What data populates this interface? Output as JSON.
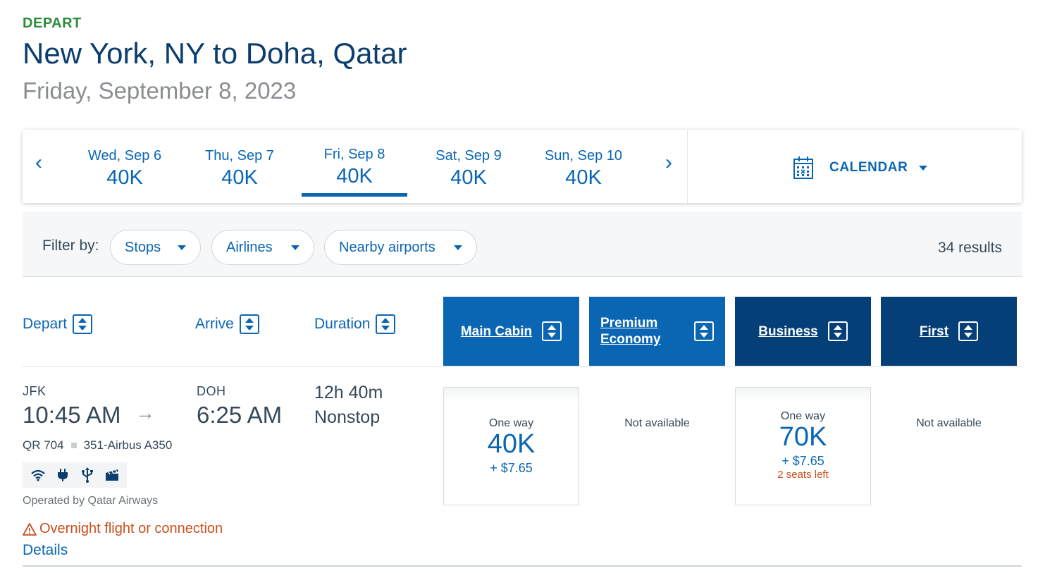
{
  "header": {
    "direction": "DEPART",
    "route": "New York, NY to Doha, Qatar",
    "date": "Friday, September 8, 2023"
  },
  "date_bar": {
    "prev_icon": "‹",
    "next_icon": "›",
    "dates": [
      {
        "day": "Wed, Sep 6",
        "price": "40K"
      },
      {
        "day": "Thu, Sep 7",
        "price": "40K"
      },
      {
        "day": "Fri, Sep 8",
        "price": "40K"
      },
      {
        "day": "Sat, Sep 9",
        "price": "40K"
      },
      {
        "day": "Sun, Sep 10",
        "price": "40K"
      }
    ],
    "selected_index": 2,
    "calendar_label": "CALENDAR",
    "calendar_icon": "calendar-icon"
  },
  "filters": {
    "label": "Filter by:",
    "pills": [
      "Stops",
      "Airlines",
      "Nearby airports"
    ],
    "results": "34 results"
  },
  "sort_header": {
    "depart": "Depart",
    "arrive": "Arrive",
    "duration": "Duration",
    "cabins": [
      "Main Cabin",
      "Premium Economy",
      "Business",
      "First"
    ],
    "premium_line1": "Premium",
    "premium_line2": "Economy"
  },
  "flight": {
    "origin": "JFK",
    "depart_time": "10:45 AM",
    "arrow": "→",
    "destination": "DOH",
    "arrive_time": "6:25 AM",
    "duration": "12h 40m",
    "stops": "Nonstop",
    "flight_number": "QR 704",
    "aircraft": "351-Airbus A350",
    "amenities": [
      "wifi-icon",
      "power-icon",
      "usb-icon",
      "entertainment-icon"
    ],
    "operated_by": "Operated by Qatar Airways",
    "warning": "Overnight flight or connection",
    "details": "Details",
    "fares": {
      "main_cabin": {
        "label": "One way",
        "points": "40K",
        "tax": "+ $7.65"
      },
      "premium_economy": {
        "na": "Not available"
      },
      "business": {
        "label": "One way",
        "points": "70K",
        "tax": "+ $7.65",
        "seats": "2 seats left"
      },
      "first": {
        "na": "Not available"
      }
    }
  },
  "colors": {
    "accent": "#0a66b3",
    "dark_accent": "#053f78",
    "depart_green": "#2e8b3a",
    "warning": "#c8501c"
  }
}
